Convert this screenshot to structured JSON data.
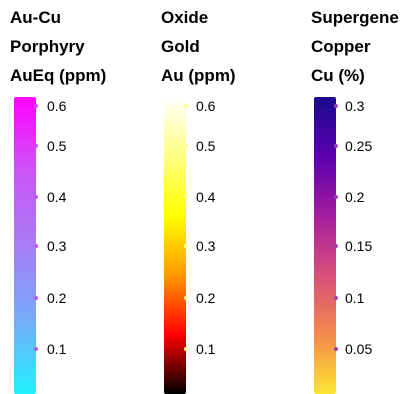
{
  "legends": [
    {
      "title_lines": [
        "Au-Cu",
        "Porphyry",
        "AuEq (ppm)"
      ],
      "gradient_colors_top_to_bottom": [
        "#ff00ff",
        "#cc55f7",
        "#a77cf6",
        "#75acf9",
        "#21f0ff"
      ],
      "tick_color": "#c050ff",
      "ticks": [
        {
          "label": "0.6",
          "value": 0.6
        },
        {
          "label": "0.5",
          "value": 0.5
        },
        {
          "label": "0.4",
          "value": 0.4
        },
        {
          "label": "0.3",
          "value": 0.3
        },
        {
          "label": "0.2",
          "value": 0.2
        },
        {
          "label": "0.1",
          "value": 0.1
        }
      ]
    },
    {
      "title_lines": [
        "Oxide",
        "Gold",
        "Au (ppm)"
      ],
      "gradient_colors_top_to_bottom": [
        "#ffffff",
        "#ffff80",
        "#ffff00",
        "#ff9900",
        "#ff0000",
        "#000000"
      ],
      "tick_color": "#ffff99",
      "ticks": [
        {
          "label": "0.6",
          "value": 0.6
        },
        {
          "label": "0.5",
          "value": 0.5
        },
        {
          "label": "0.4",
          "value": 0.4
        },
        {
          "label": "0.3",
          "value": 0.3
        },
        {
          "label": "0.2",
          "value": 0.2
        },
        {
          "label": "0.1",
          "value": 0.1
        }
      ]
    },
    {
      "title_lines": [
        "Supergene",
        "Copper",
        "Cu (%)"
      ],
      "gradient_colors_top_to_bottom": [
        "#1a0a8c",
        "#5a00b0",
        "#a51d9e",
        "#d8507a",
        "#f4894c",
        "#fde530"
      ],
      "tick_color": "#9b40c0",
      "ticks": [
        {
          "label": "0.3",
          "value": 0.3
        },
        {
          "label": "0.25",
          "value": 0.25
        },
        {
          "label": "0.2",
          "value": 0.2
        },
        {
          "label": "0.15",
          "value": 0.15
        },
        {
          "label": "0.1",
          "value": 0.1
        },
        {
          "label": "0.05",
          "value": 0.05
        }
      ]
    }
  ]
}
